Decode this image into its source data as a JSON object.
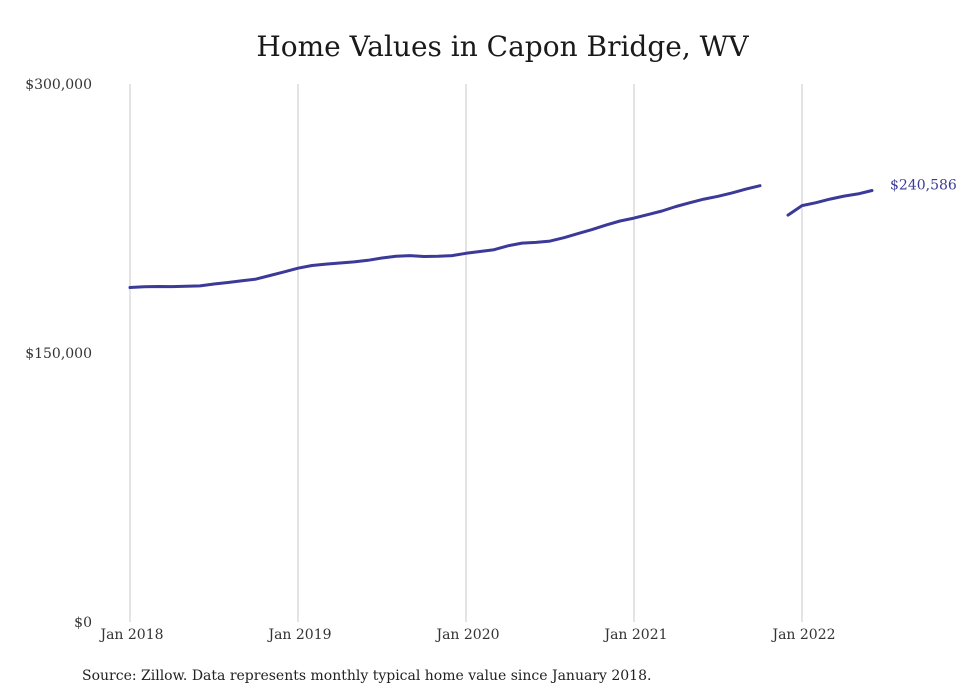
{
  "chart_data": {
    "type": "line",
    "title": "Home Values in Capon Bridge, WV",
    "xlabel": "",
    "ylabel": "",
    "ylim": [
      0,
      300000
    ],
    "yticks": [
      {
        "value": 0,
        "label": "$0"
      },
      {
        "value": 150000,
        "label": "$150,000"
      },
      {
        "value": 300000,
        "label": "$300,000"
      }
    ],
    "xticks": [
      {
        "value": 0,
        "label": "Jan 2018"
      },
      {
        "value": 12,
        "label": "Jan 2019"
      },
      {
        "value": 24,
        "label": "Jan 2020"
      },
      {
        "value": 36,
        "label": "Jan 2021"
      },
      {
        "value": 48,
        "label": "Jan 2022"
      }
    ],
    "xlim": [
      0,
      53
    ],
    "grid": {
      "x": true,
      "y": false
    },
    "color": "#3b3a98",
    "series": [
      {
        "segments": [
          [
            [
              0,
              186500
            ],
            [
              1,
              186900
            ],
            [
              2,
              187100
            ],
            [
              3,
              187000
            ],
            [
              4,
              187200
            ],
            [
              5,
              187400
            ],
            [
              6,
              188500
            ],
            [
              7,
              189300
            ],
            [
              8,
              190300
            ],
            [
              9,
              191200
            ],
            [
              10,
              193200
            ],
            [
              11,
              195200
            ],
            [
              12,
              197300
            ],
            [
              13,
              198800
            ],
            [
              14,
              199600
            ],
            [
              15,
              200200
            ],
            [
              16,
              200800
            ],
            [
              17,
              201700
            ],
            [
              18,
              203000
            ],
            [
              19,
              204000
            ],
            [
              20,
              204300
            ],
            [
              21,
              203800
            ],
            [
              22,
              203900
            ],
            [
              23,
              204300
            ],
            [
              24,
              205600
            ],
            [
              25,
              206600
            ],
            [
              26,
              207600
            ],
            [
              27,
              209800
            ],
            [
              28,
              211300
            ],
            [
              29,
              211700
            ],
            [
              30,
              212400
            ],
            [
              31,
              214300
            ],
            [
              32,
              216600
            ],
            [
              33,
              218800
            ],
            [
              34,
              221300
            ],
            [
              35,
              223600
            ],
            [
              36,
              225200
            ],
            [
              37,
              227200
            ],
            [
              38,
              229200
            ],
            [
              39,
              231700
            ],
            [
              40,
              233800
            ],
            [
              41,
              235800
            ],
            [
              42,
              237400
            ],
            [
              43,
              239300
            ],
            [
              44,
              241400
            ],
            [
              45,
              243300
            ]
          ],
          [
            [
              47,
              226900
            ],
            [
              48,
              232200
            ],
            [
              49,
              233800
            ],
            [
              50,
              235800
            ],
            [
              51,
              237500
            ],
            [
              52,
              238700
            ],
            [
              53,
              240586
            ]
          ]
        ]
      }
    ],
    "end_label": "$240,586"
  },
  "source": "Source: Zillow. Data represents monthly typical home value since January 2018."
}
